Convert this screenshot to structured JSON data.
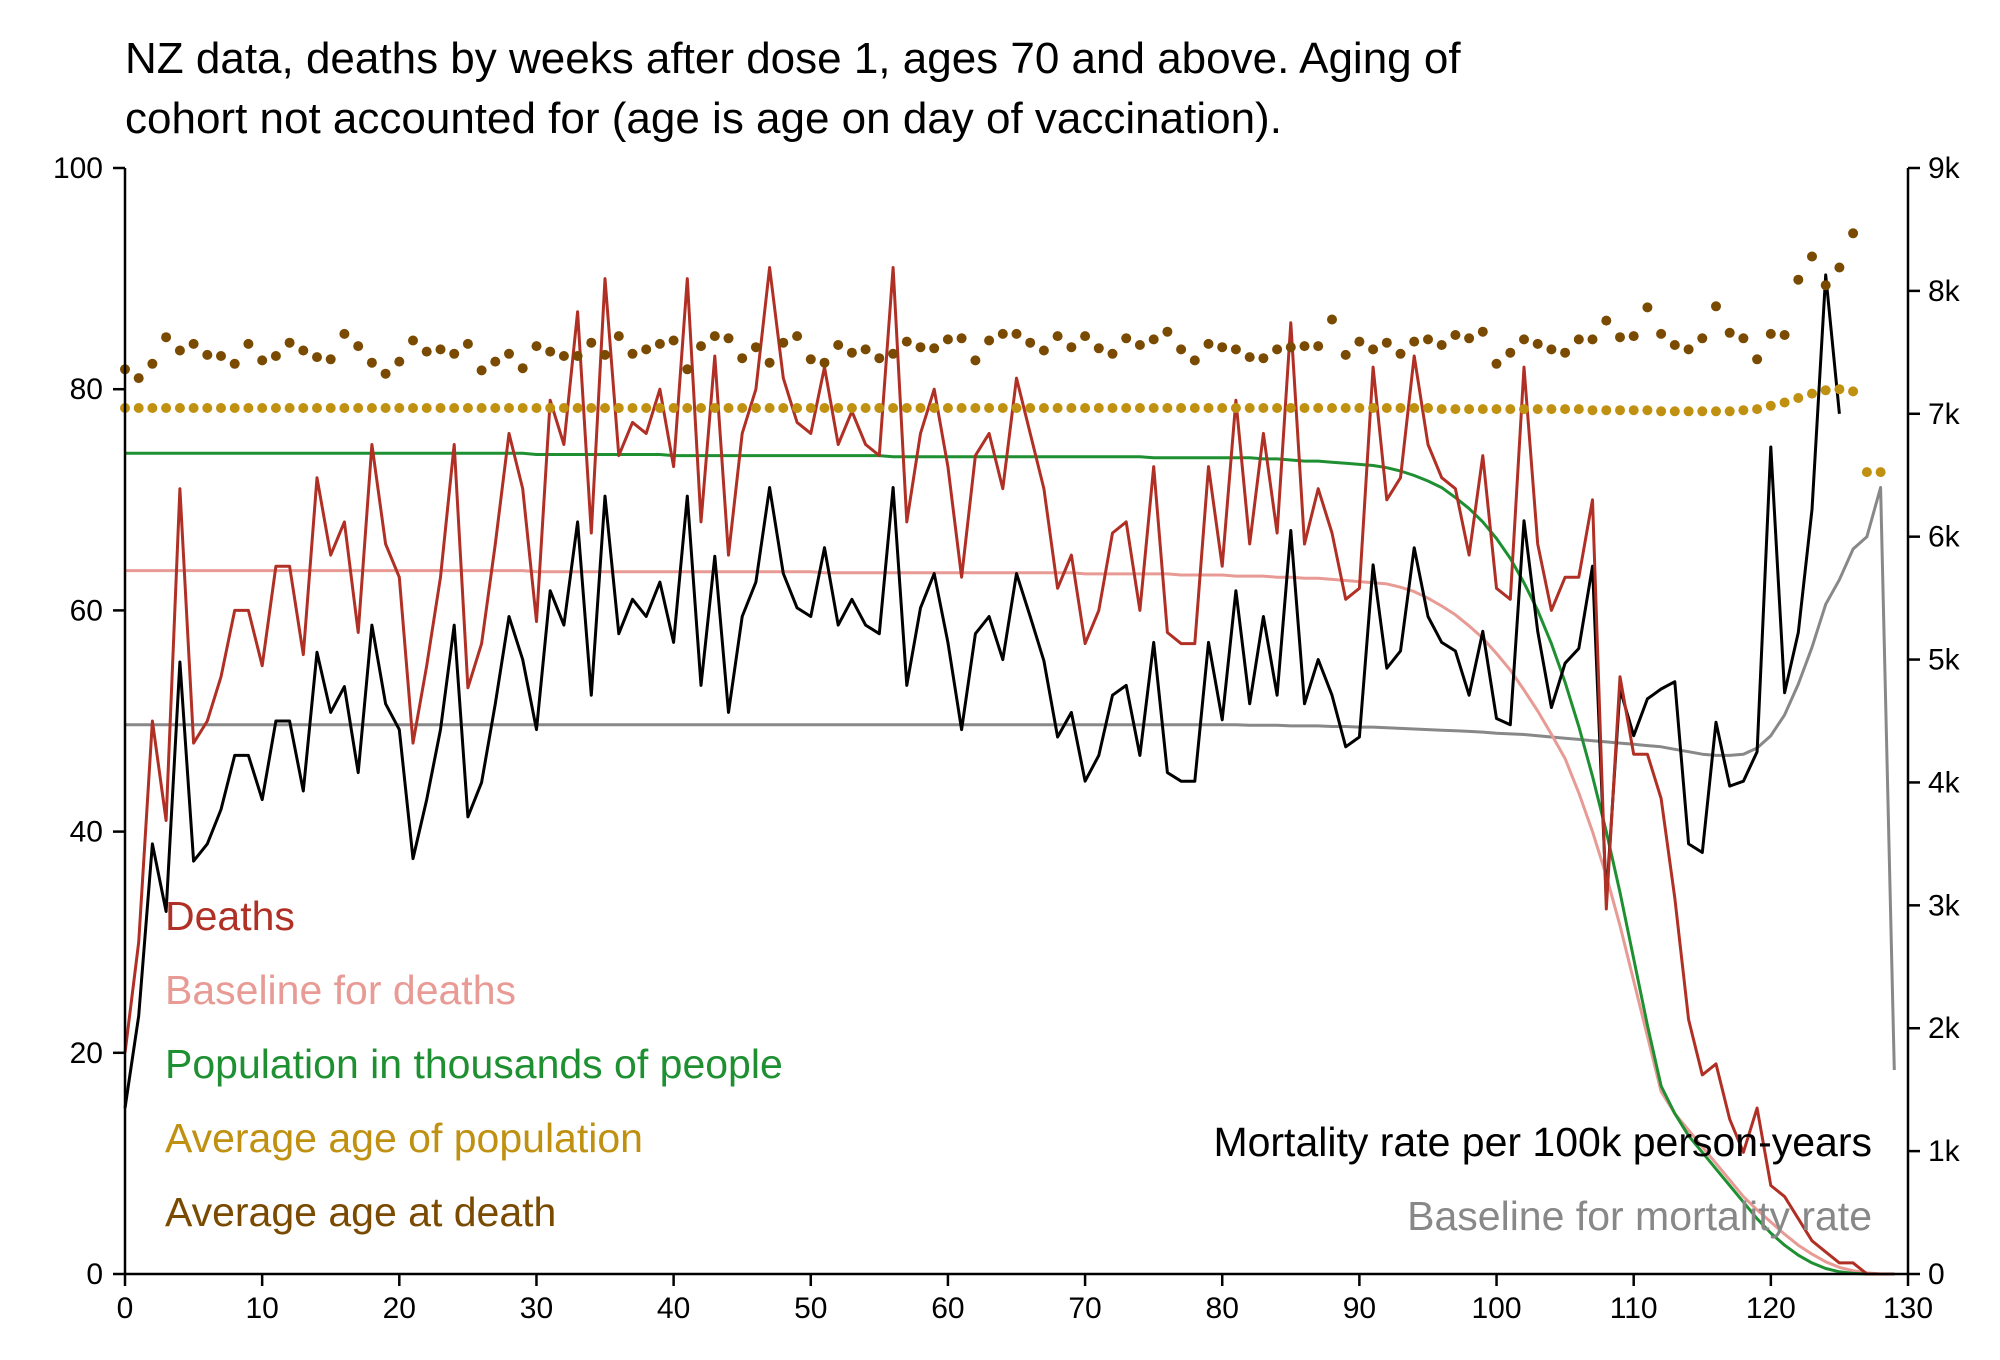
{
  "title_lines": [
    "NZ data, deaths by weeks after dose 1, ages 70 and above. Aging of",
    "cohort not accounted for (age is age on day of vaccination)."
  ],
  "colors": {
    "deaths": "#b03025",
    "baseline_deaths": "#e89a94",
    "population": "#1e9032",
    "avg_age_population": "#c09010",
    "avg_age_death": "#7a4a00",
    "mortality": "#000000",
    "baseline_mortality": "#888888"
  },
  "chart_data": {
    "type": "line",
    "x": [
      0,
      1,
      2,
      3,
      4,
      5,
      6,
      7,
      8,
      9,
      10,
      11,
      12,
      13,
      14,
      15,
      16,
      17,
      18,
      19,
      20,
      21,
      22,
      23,
      24,
      25,
      26,
      27,
      28,
      29,
      30,
      31,
      32,
      33,
      34,
      35,
      36,
      37,
      38,
      39,
      40,
      41,
      42,
      43,
      44,
      45,
      46,
      47,
      48,
      49,
      50,
      51,
      52,
      53,
      54,
      55,
      56,
      57,
      58,
      59,
      60,
      61,
      62,
      63,
      64,
      65,
      66,
      67,
      68,
      69,
      70,
      71,
      72,
      73,
      74,
      75,
      76,
      77,
      78,
      79,
      80,
      81,
      82,
      83,
      84,
      85,
      86,
      87,
      88,
      89,
      90,
      91,
      92,
      93,
      94,
      95,
      96,
      97,
      98,
      99,
      100,
      101,
      102,
      103,
      104,
      105,
      106,
      107,
      108,
      109,
      110,
      111,
      112,
      113,
      114,
      115,
      116,
      117,
      118,
      119,
      120,
      121,
      122,
      123,
      124,
      125,
      126,
      127,
      128,
      129
    ],
    "xlim": [
      0,
      130
    ],
    "xticks": [
      "0",
      "10",
      "20",
      "30",
      "40",
      "50",
      "60",
      "70",
      "80",
      "90",
      "100",
      "110",
      "120",
      "130"
    ],
    "left_axis": {
      "ylim": [
        0,
        100
      ],
      "ticks": [
        "0",
        "20",
        "40",
        "60",
        "80",
        "100"
      ]
    },
    "right_axis": {
      "ylim": [
        0,
        9000
      ],
      "ticks": [
        "0",
        "1k",
        "2k",
        "3k",
        "4k",
        "5k",
        "6k",
        "7k",
        "8k",
        "9k"
      ]
    },
    "legend_left": [
      {
        "label": "Deaths",
        "color_key": "deaths"
      },
      {
        "label": "Baseline for deaths",
        "color_key": "baseline_deaths"
      },
      {
        "label": "Population in thousands of people",
        "color_key": "population"
      },
      {
        "label": "Average age of population",
        "color_key": "avg_age_population"
      },
      {
        "label": "Average age at death",
        "color_key": "avg_age_death"
      }
    ],
    "legend_right": [
      {
        "label": "Mortality rate per 100k person-years",
        "color_key": "mortality"
      },
      {
        "label": "Baseline for mortality rate",
        "color_key": "baseline_mortality"
      }
    ],
    "series": {
      "deaths": {
        "axis": "left",
        "style": "line",
        "values": [
          20,
          30,
          50,
          41,
          71,
          48,
          50,
          54,
          60,
          60,
          55,
          64,
          64,
          56,
          72,
          65,
          68,
          58,
          75,
          66,
          63,
          48,
          55,
          63,
          75,
          53,
          57,
          66,
          76,
          71,
          59,
          79,
          75,
          87,
          67,
          90,
          74,
          77,
          76,
          80,
          73,
          90,
          68,
          83,
          65,
          76,
          80,
          91,
          81,
          77,
          76,
          82,
          75,
          78,
          75,
          74,
          91,
          68,
          76,
          80,
          73,
          63,
          74,
          76,
          71,
          81,
          76,
          71,
          62,
          65,
          57,
          60,
          67,
          68,
          60,
          73,
          58,
          57,
          57,
          73,
          64,
          79,
          66,
          76,
          67,
          86,
          66,
          71,
          67,
          61,
          62,
          82,
          70,
          72,
          83,
          75,
          72,
          71,
          65,
          74,
          62,
          61,
          82,
          66,
          60,
          63,
          63,
          70,
          33,
          54,
          47,
          47,
          43,
          34,
          23,
          18,
          19,
          14,
          11,
          15,
          8,
          7,
          5,
          3,
          2,
          1,
          1,
          0,
          0,
          0
        ]
      },
      "baseline_deaths": {
        "axis": "left",
        "style": "line",
        "values": [
          63.6,
          63.6,
          63.6,
          63.6,
          63.6,
          63.6,
          63.6,
          63.6,
          63.6,
          63.6,
          63.6,
          63.6,
          63.6,
          63.6,
          63.6,
          63.6,
          63.6,
          63.6,
          63.6,
          63.6,
          63.6,
          63.6,
          63.6,
          63.6,
          63.6,
          63.6,
          63.6,
          63.6,
          63.6,
          63.6,
          63.5,
          63.5,
          63.5,
          63.5,
          63.5,
          63.5,
          63.5,
          63.5,
          63.5,
          63.5,
          63.5,
          63.5,
          63.5,
          63.5,
          63.5,
          63.5,
          63.5,
          63.5,
          63.5,
          63.5,
          63.5,
          63.4,
          63.4,
          63.4,
          63.4,
          63.4,
          63.4,
          63.4,
          63.4,
          63.4,
          63.4,
          63.4,
          63.4,
          63.4,
          63.4,
          63.4,
          63.4,
          63.4,
          63.4,
          63.4,
          63.3,
          63.3,
          63.3,
          63.3,
          63.3,
          63.3,
          63.3,
          63.2,
          63.2,
          63.2,
          63.2,
          63.1,
          63.1,
          63.1,
          63.0,
          63.0,
          62.9,
          62.9,
          62.8,
          62.7,
          62.6,
          62.5,
          62.4,
          62.1,
          61.7,
          61.1,
          60.4,
          59.6,
          58.6,
          57.5,
          56.1,
          54.6,
          52.8,
          50.9,
          48.8,
          46.6,
          43.5,
          40.0,
          36.0,
          31.5,
          26.5,
          21.5,
          16.5,
          14.5,
          13.0,
          11.5,
          10.0,
          8.5,
          7.0,
          5.8,
          4.7,
          3.6,
          2.6,
          1.8,
          1.1,
          0.6,
          0.3,
          0.1,
          0,
          0
        ]
      },
      "population_thousands": {
        "axis": "left",
        "style": "line",
        "values": [
          74.2,
          74.2,
          74.2,
          74.2,
          74.2,
          74.2,
          74.2,
          74.2,
          74.2,
          74.2,
          74.2,
          74.2,
          74.2,
          74.2,
          74.2,
          74.2,
          74.2,
          74.2,
          74.2,
          74.2,
          74.2,
          74.2,
          74.2,
          74.2,
          74.2,
          74.2,
          74.2,
          74.2,
          74.2,
          74.2,
          74.1,
          74.1,
          74.1,
          74.1,
          74.1,
          74.1,
          74.1,
          74.1,
          74.1,
          74.1,
          74.0,
          74.0,
          74.0,
          74.0,
          74.0,
          74.0,
          74.0,
          74.0,
          74.0,
          74.0,
          74.0,
          74.0,
          74.0,
          74.0,
          74.0,
          74.0,
          73.9,
          73.9,
          73.9,
          73.9,
          73.9,
          73.9,
          73.9,
          73.9,
          73.9,
          73.9,
          73.9,
          73.9,
          73.9,
          73.9,
          73.9,
          73.9,
          73.9,
          73.9,
          73.9,
          73.8,
          73.8,
          73.8,
          73.8,
          73.8,
          73.8,
          73.8,
          73.8,
          73.7,
          73.7,
          73.6,
          73.5,
          73.5,
          73.4,
          73.3,
          73.2,
          73.1,
          72.9,
          72.6,
          72.2,
          71.7,
          71.1,
          70.2,
          69.2,
          68.0,
          66.5,
          64.7,
          62.5,
          60.0,
          57.0,
          53.5,
          49.5,
          45.0,
          40.0,
          34.5,
          28.5,
          22.5,
          17.0,
          14.5,
          12.5,
          11.0,
          9.5,
          8.0,
          6.5,
          5.0,
          3.7,
          2.6,
          1.7,
          1.0,
          0.5,
          0.2,
          0.05,
          0,
          0,
          0
        ]
      },
      "avg_age_population": {
        "axis": "left",
        "style": "dots",
        "values": [
          78.3,
          78.3,
          78.3,
          78.3,
          78.3,
          78.3,
          78.3,
          78.3,
          78.3,
          78.3,
          78.3,
          78.3,
          78.3,
          78.3,
          78.3,
          78.3,
          78.3,
          78.3,
          78.3,
          78.3,
          78.3,
          78.3,
          78.3,
          78.3,
          78.3,
          78.3,
          78.3,
          78.3,
          78.3,
          78.3,
          78.3,
          78.3,
          78.3,
          78.3,
          78.3,
          78.3,
          78.3,
          78.3,
          78.3,
          78.3,
          78.3,
          78.3,
          78.3,
          78.3,
          78.3,
          78.3,
          78.3,
          78.3,
          78.3,
          78.3,
          78.3,
          78.3,
          78.3,
          78.3,
          78.3,
          78.3,
          78.3,
          78.3,
          78.3,
          78.3,
          78.3,
          78.3,
          78.3,
          78.3,
          78.3,
          78.3,
          78.3,
          78.3,
          78.3,
          78.3,
          78.3,
          78.3,
          78.3,
          78.3,
          78.3,
          78.3,
          78.3,
          78.3,
          78.3,
          78.3,
          78.3,
          78.3,
          78.3,
          78.3,
          78.3,
          78.3,
          78.3,
          78.3,
          78.3,
          78.3,
          78.3,
          78.3,
          78.3,
          78.3,
          78.3,
          78.3,
          78.2,
          78.2,
          78.2,
          78.2,
          78.2,
          78.2,
          78.2,
          78.2,
          78.2,
          78.2,
          78.2,
          78.1,
          78.1,
          78.1,
          78.1,
          78.1,
          78.0,
          78.0,
          78.0,
          78.0,
          78.0,
          78.0,
          78.1,
          78.2,
          78.5,
          78.8,
          79.2,
          79.6,
          79.9,
          80.0,
          79.8,
          72.5,
          72.5,
          null
        ]
      },
      "avg_age_death": {
        "axis": "left",
        "style": "dots",
        "values": [
          81.8,
          81.0,
          82.3,
          84.7,
          83.5,
          84.1,
          83.1,
          83.0,
          82.3,
          84.1,
          82.6,
          83.0,
          84.2,
          83.5,
          82.9,
          82.7,
          85.0,
          83.9,
          82.4,
          81.4,
          82.5,
          84.4,
          83.4,
          83.6,
          83.2,
          84.1,
          81.7,
          82.5,
          83.2,
          81.9,
          83.9,
          83.4,
          83.0,
          83.0,
          84.2,
          83.1,
          84.8,
          83.2,
          83.6,
          84.1,
          84.4,
          81.8,
          83.9,
          84.8,
          84.6,
          82.8,
          83.8,
          82.4,
          84.2,
          84.8,
          82.7,
          82.4,
          84.0,
          83.3,
          83.6,
          82.8,
          83.2,
          84.3,
          83.8,
          83.7,
          84.5,
          84.6,
          82.6,
          84.4,
          85.0,
          85.0,
          84.2,
          83.5,
          84.8,
          83.8,
          84.8,
          83.7,
          83.2,
          84.6,
          84.0,
          84.5,
          85.2,
          83.6,
          82.6,
          84.1,
          83.8,
          83.6,
          82.9,
          82.8,
          83.6,
          83.8,
          83.9,
          83.9,
          86.3,
          83.1,
          84.3,
          83.6,
          84.2,
          83.2,
          84.3,
          84.5,
          84.0,
          84.9,
          84.6,
          85.2,
          82.3,
          83.3,
          84.5,
          84.1,
          83.6,
          83.3,
          84.5,
          84.5,
          86.2,
          84.7,
          84.8,
          87.4,
          85.0,
          84.0,
          83.6,
          84.6,
          87.5,
          85.1,
          84.6,
          82.7,
          85.0,
          84.9,
          89.9,
          92.0,
          89.4,
          91.0,
          94.1,
          null,
          null,
          null
        ]
      },
      "mortality_rate": {
        "axis": "right",
        "style": "line",
        "values": [
          1350,
          2100,
          3500,
          2950,
          4980,
          3360,
          3500,
          3780,
          4220,
          4220,
          3860,
          4500,
          4500,
          3930,
          5060,
          4570,
          4780,
          4080,
          5280,
          4640,
          4430,
          3380,
          3860,
          4430,
          5280,
          3720,
          4000,
          4640,
          5350,
          5000,
          4430,
          5560,
          5280,
          6120,
          4710,
          6330,
          5210,
          5490,
          5350,
          5630,
          5140,
          6330,
          4790,
          5840,
          4570,
          5350,
          5630,
          6400,
          5700,
          5420,
          5350,
          5910,
          5280,
          5490,
          5280,
          5210,
          6400,
          4790,
          5420,
          5700,
          5140,
          4430,
          5210,
          5350,
          5000,
          5700,
          5350,
          4990,
          4370,
          4570,
          4010,
          4220,
          4710,
          4790,
          4220,
          5140,
          4080,
          4010,
          4010,
          5140,
          4510,
          5560,
          4640,
          5350,
          4710,
          6050,
          4640,
          5000,
          4710,
          4290,
          4370,
          5770,
          4930,
          5070,
          5910,
          5350,
          5140,
          5070,
          4710,
          5230,
          4520,
          4470,
          6130,
          5230,
          4610,
          4970,
          5090,
          5760,
          3050,
          4760,
          4380,
          4680,
          4760,
          4820,
          3500,
          3430,
          4490,
          3970,
          4010,
          4250,
          6730,
          4730,
          5220,
          6220,
          8130,
          7000,
          null,
          null,
          null,
          null
        ]
      },
      "baseline_mortality": {
        "axis": "right",
        "style": "line",
        "values": [
          4470,
          4470,
          4470,
          4470,
          4470,
          4470,
          4470,
          4470,
          4470,
          4470,
          4470,
          4470,
          4470,
          4470,
          4470,
          4470,
          4470,
          4470,
          4470,
          4470,
          4470,
          4470,
          4470,
          4470,
          4470,
          4470,
          4470,
          4470,
          4470,
          4470,
          4470,
          4470,
          4470,
          4470,
          4470,
          4470,
          4470,
          4470,
          4470,
          4470,
          4470,
          4470,
          4470,
          4470,
          4470,
          4470,
          4470,
          4470,
          4470,
          4470,
          4470,
          4470,
          4470,
          4470,
          4470,
          4470,
          4470,
          4470,
          4470,
          4470,
          4470,
          4470,
          4470,
          4470,
          4470,
          4470,
          4470,
          4470,
          4470,
          4470,
          4470,
          4470,
          4470,
          4470,
          4470,
          4470,
          4470,
          4470,
          4470,
          4470,
          4470,
          4470,
          4465,
          4465,
          4465,
          4460,
          4460,
          4460,
          4455,
          4455,
          4450,
          4450,
          4445,
          4440,
          4435,
          4430,
          4425,
          4420,
          4415,
          4410,
          4400,
          4395,
          4390,
          4380,
          4370,
          4360,
          4350,
          4340,
          4330,
          4320,
          4310,
          4300,
          4290,
          4270,
          4250,
          4230,
          4220,
          4220,
          4230,
          4280,
          4380,
          4550,
          4800,
          5100,
          5450,
          5650,
          5900,
          6000,
          6400,
          1660,
          1660
        ]
      }
    }
  }
}
